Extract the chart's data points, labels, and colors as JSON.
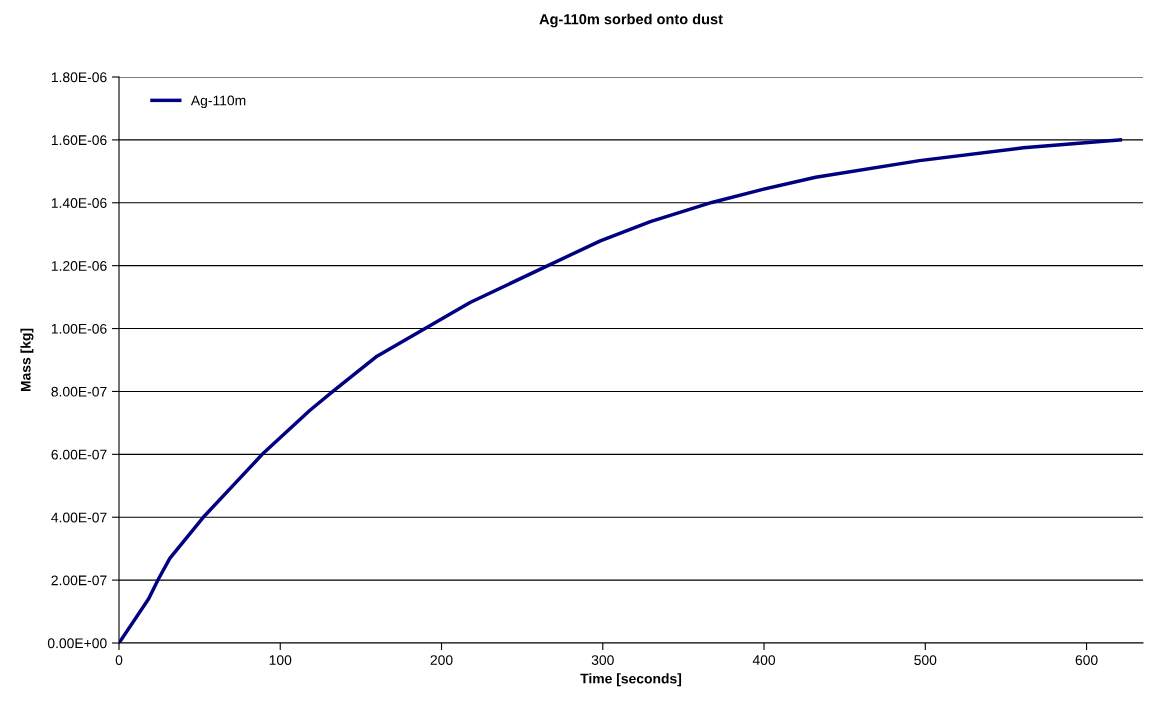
{
  "chart_data": {
    "type": "line",
    "title": "Ag-110m sorbed onto dust",
    "xlabel": "Time [seconds]",
    "ylabel": "Mass [kg]",
    "series": [
      {
        "name": "Ag-110m",
        "color": "#000080",
        "x": [
          0,
          18.4,
          24.3,
          31.5,
          53,
          88.8,
          118.6,
          133,
          160,
          189,
          217.7,
          263,
          298.5,
          329.5,
          367.6,
          398.6,
          432,
          496.4,
          560.8,
          621
        ],
        "values": [
          0,
          1.41e-07,
          2.02e-07,
          2.69e-07,
          4.04e-07,
          6e-07,
          7.41e-07,
          8.02e-07,
          9.12e-07,
          9.98e-07,
          1.083e-06,
          1.193e-06,
          1.279e-06,
          1.34e-06,
          1.401e-06,
          1.442e-06,
          1.481e-06,
          1.534e-06,
          1.575e-06,
          1.6e-06
        ]
      }
    ],
    "xlim": [
      0,
      635
    ],
    "xticks": [
      0,
      100,
      200,
      300,
      400,
      500,
      600
    ],
    "ylim": [
      0,
      1.8e-06
    ],
    "yticks": [
      {
        "value": 0,
        "label": "0.00E+00"
      },
      {
        "value": 2e-07,
        "label": "2.00E-07"
      },
      {
        "value": 4e-07,
        "label": "4.00E-07"
      },
      {
        "value": 6e-07,
        "label": "6.00E-07"
      },
      {
        "value": 8e-07,
        "label": "8.00E-07"
      },
      {
        "value": 1e-06,
        "label": "1.00E-06"
      },
      {
        "value": 1.2e-06,
        "label": "1.20E-06"
      },
      {
        "value": 1.4e-06,
        "label": "1.40E-06"
      },
      {
        "value": 1.6e-06,
        "label": "1.60E-06"
      },
      {
        "value": 1.8e-06,
        "label": "1.80E-06"
      }
    ],
    "grid": "y",
    "legend": "top left",
    "marker": "none",
    "line_style": "solid"
  }
}
